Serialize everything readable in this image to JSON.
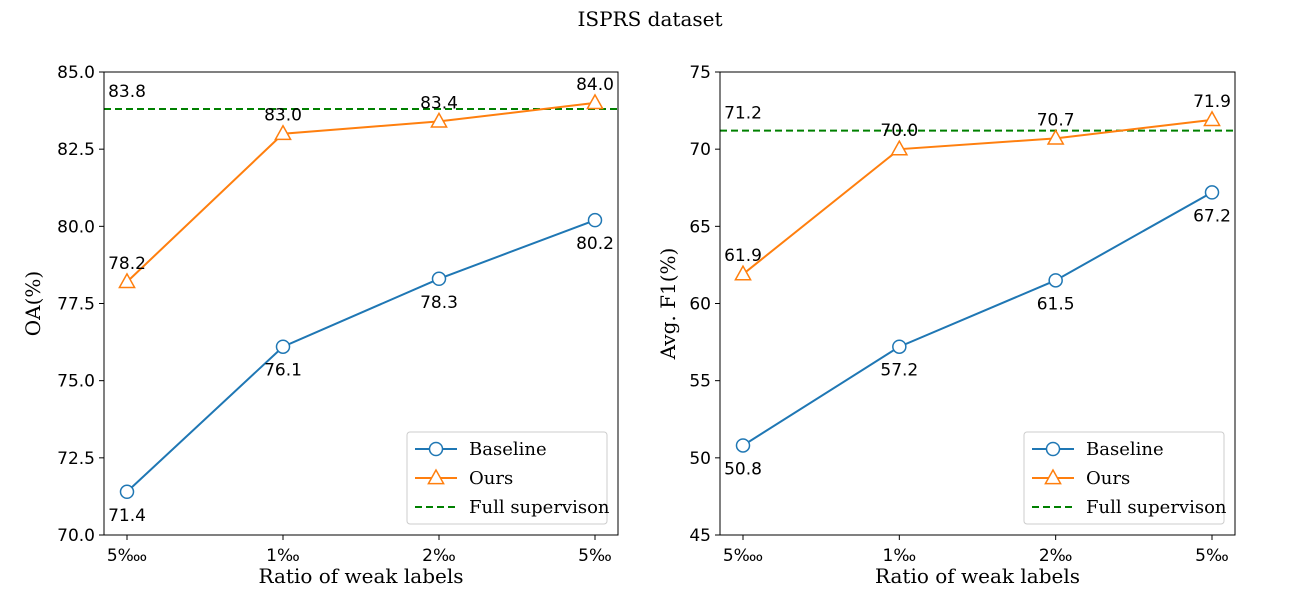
{
  "figure_title": "ISPRS dataset",
  "colors": {
    "baseline": "#1f77b4",
    "ours": "#ff7f0e",
    "full": "#008000",
    "axis": "#000000"
  },
  "chart_data": [
    {
      "type": "line",
      "categories": [
        "5‱",
        "1‰",
        "2‰",
        "5‰"
      ],
      "xlabel": "Ratio of weak labels",
      "ylabel": "OA(%)",
      "ylim": [
        70.0,
        85.0
      ],
      "yticks": [
        "70.0",
        "72.5",
        "75.0",
        "77.5",
        "80.0",
        "82.5",
        "85.0"
      ],
      "series": [
        {
          "name": "Baseline",
          "key": "baseline",
          "marker": "circle",
          "values": [
            71.4,
            76.1,
            78.3,
            80.2
          ],
          "labels": [
            "71.4",
            "76.1",
            "78.3",
            "80.2"
          ],
          "label_pos": [
            "below",
            "below",
            "below",
            "below"
          ]
        },
        {
          "name": "Ours",
          "key": "ours",
          "marker": "triangle",
          "values": [
            78.2,
            83.0,
            83.4,
            84.0
          ],
          "labels": [
            "78.2",
            "83.0",
            "83.4",
            "84.0"
          ],
          "label_pos": [
            "above",
            "above",
            "above",
            "above"
          ]
        }
      ],
      "reference": {
        "name": "Full supervison",
        "key": "full",
        "value": 83.8,
        "label": "83.8"
      },
      "legend": [
        "Baseline",
        "Ours",
        "Full supervison"
      ],
      "legend_loc": "lower-right"
    },
    {
      "type": "line",
      "categories": [
        "5‱",
        "1‰",
        "2‰",
        "5‰"
      ],
      "xlabel": "Ratio of weak labels",
      "ylabel": "Avg. F1(%)",
      "ylim": [
        45,
        75
      ],
      "yticks": [
        "45",
        "50",
        "55",
        "60",
        "65",
        "70",
        "75"
      ],
      "series": [
        {
          "name": "Baseline",
          "key": "baseline",
          "marker": "circle",
          "values": [
            50.8,
            57.2,
            61.5,
            67.2
          ],
          "labels": [
            "50.8",
            "57.2",
            "61.5",
            "67.2"
          ],
          "label_pos": [
            "below",
            "below",
            "below",
            "below"
          ]
        },
        {
          "name": "Ours",
          "key": "ours",
          "marker": "triangle",
          "values": [
            61.9,
            70.0,
            70.7,
            71.9
          ],
          "labels": [
            "61.9",
            "70.0",
            "70.7",
            "71.9"
          ],
          "label_pos": [
            "above",
            "above",
            "above",
            "above"
          ]
        }
      ],
      "reference": {
        "name": "Full supervison",
        "key": "full",
        "value": 71.2,
        "label": "71.2"
      },
      "legend": [
        "Baseline",
        "Ours",
        "Full supervison"
      ],
      "legend_loc": "lower-right"
    }
  ]
}
